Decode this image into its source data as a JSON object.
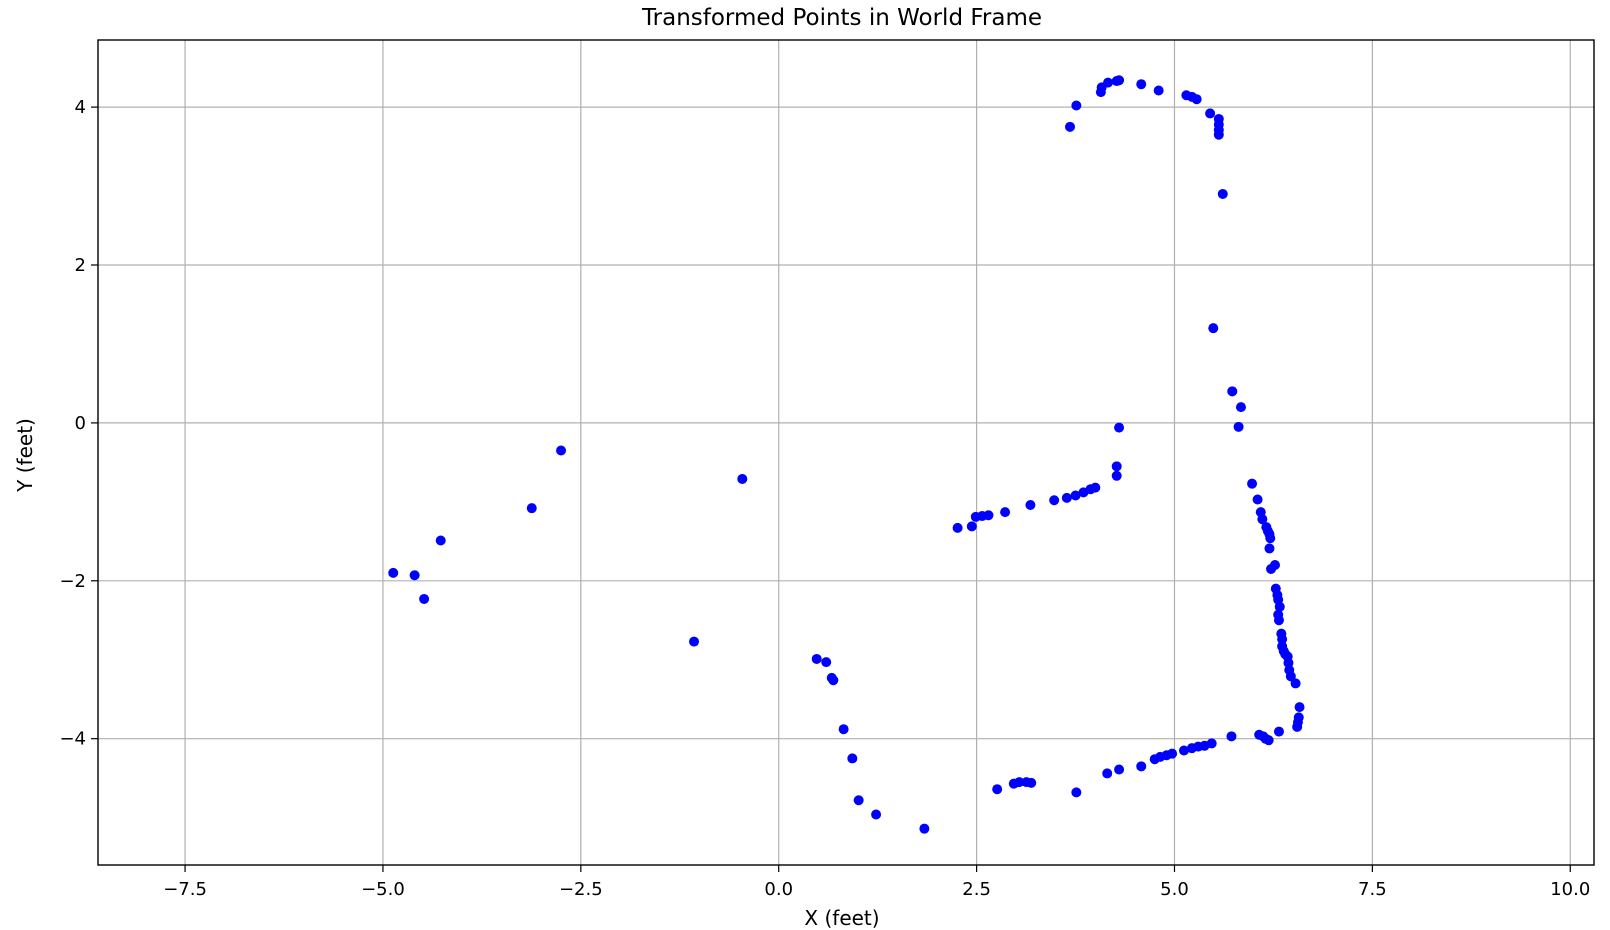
{
  "chart_data": {
    "type": "scatter",
    "title": "Transformed Points in World Frame",
    "xlabel": "X (feet)",
    "ylabel": "Y (feet)",
    "xlim": [
      -8.6,
      10.3
    ],
    "ylim": [
      -5.6,
      4.85
    ],
    "xticks": [
      -7.5,
      -5.0,
      -2.5,
      0.0,
      2.5,
      5.0,
      7.5,
      10.0
    ],
    "xtick_labels": [
      "−7.5",
      "−5.0",
      "−2.5",
      "0.0",
      "2.5",
      "5.0",
      "7.5",
      "10.0"
    ],
    "yticks": [
      -4,
      -2,
      0,
      2,
      4
    ],
    "ytick_labels": [
      "−4",
      "−2",
      "0",
      "2",
      "4"
    ],
    "grid": true,
    "marker_color": "#0000ff",
    "points": [
      [
        -4.87,
        -1.9
      ],
      [
        -4.6,
        -1.93
      ],
      [
        -4.48,
        -2.23
      ],
      [
        -4.27,
        -1.49
      ],
      [
        -3.12,
        -1.08
      ],
      [
        -2.75,
        -0.35
      ],
      [
        -1.07,
        -2.77
      ],
      [
        -0.46,
        -0.71
      ],
      [
        0.48,
        -2.99
      ],
      [
        0.6,
        -3.03
      ],
      [
        0.67,
        -3.23
      ],
      [
        0.69,
        -3.26
      ],
      [
        0.82,
        -3.88
      ],
      [
        0.93,
        -4.25
      ],
      [
        1.01,
        -4.78
      ],
      [
        1.23,
        -4.96
      ],
      [
        1.84,
        -5.14
      ],
      [
        2.26,
        -1.33
      ],
      [
        2.44,
        -1.31
      ],
      [
        2.49,
        -1.19
      ],
      [
        2.57,
        -1.18
      ],
      [
        2.65,
        -1.17
      ],
      [
        2.86,
        -1.13
      ],
      [
        3.18,
        -1.04
      ],
      [
        3.48,
        -0.98
      ],
      [
        3.64,
        -0.95
      ],
      [
        3.75,
        -0.92
      ],
      [
        3.85,
        -0.88
      ],
      [
        3.94,
        -0.84
      ],
      [
        4.0,
        -0.82
      ],
      [
        4.27,
        -0.55
      ],
      [
        4.27,
        -0.67
      ],
      [
        4.3,
        -0.06
      ],
      [
        2.76,
        -4.64
      ],
      [
        2.97,
        -4.57
      ],
      [
        3.04,
        -4.55
      ],
      [
        3.13,
        -4.55
      ],
      [
        3.19,
        -4.56
      ],
      [
        3.76,
        -4.68
      ],
      [
        4.15,
        -4.44
      ],
      [
        4.3,
        -4.39
      ],
      [
        4.58,
        -4.35
      ],
      [
        4.75,
        -4.26
      ],
      [
        4.82,
        -4.23
      ],
      [
        4.9,
        -4.21
      ],
      [
        4.97,
        -4.19
      ],
      [
        5.12,
        -4.15
      ],
      [
        5.22,
        -4.12
      ],
      [
        5.3,
        -4.1
      ],
      [
        5.38,
        -4.09
      ],
      [
        5.47,
        -4.06
      ],
      [
        5.72,
        -3.97
      ],
      [
        6.07,
        -3.95
      ],
      [
        6.12,
        -3.97
      ],
      [
        6.15,
        -4.0
      ],
      [
        6.19,
        -4.02
      ],
      [
        6.32,
        -3.91
      ],
      [
        6.55,
        -3.85
      ],
      [
        6.56,
        -3.79
      ],
      [
        6.57,
        -3.73
      ],
      [
        6.58,
        -3.6
      ],
      [
        6.53,
        -3.3
      ],
      [
        6.47,
        -3.21
      ],
      [
        6.45,
        -3.13
      ],
      [
        6.44,
        -3.04
      ],
      [
        6.43,
        -2.96
      ],
      [
        6.4,
        -2.93
      ],
      [
        6.38,
        -2.89
      ],
      [
        6.36,
        -2.83
      ],
      [
        6.36,
        -2.74
      ],
      [
        6.35,
        -2.67
      ],
      [
        6.32,
        -2.5
      ],
      [
        6.31,
        -2.43
      ],
      [
        6.33,
        -2.33
      ],
      [
        6.31,
        -2.24
      ],
      [
        6.3,
        -2.18
      ],
      [
        6.28,
        -2.1
      ],
      [
        6.27,
        -1.8
      ],
      [
        6.22,
        -1.85
      ],
      [
        6.2,
        -1.59
      ],
      [
        6.21,
        -1.46
      ],
      [
        6.2,
        -1.41
      ],
      [
        6.18,
        -1.37
      ],
      [
        6.16,
        -1.32
      ],
      [
        6.11,
        -1.22
      ],
      [
        6.09,
        -1.13
      ],
      [
        6.05,
        -0.97
      ],
      [
        5.98,
        -0.77
      ],
      [
        5.81,
        -0.05
      ],
      [
        5.84,
        0.2
      ],
      [
        5.73,
        0.4
      ],
      [
        5.49,
        1.2
      ],
      [
        5.61,
        2.9
      ],
      [
        5.56,
        3.65
      ],
      [
        5.56,
        3.71
      ],
      [
        5.56,
        3.78
      ],
      [
        5.56,
        3.85
      ],
      [
        5.45,
        3.92
      ],
      [
        5.28,
        4.1
      ],
      [
        5.22,
        4.13
      ],
      [
        5.15,
        4.15
      ],
      [
        4.8,
        4.21
      ],
      [
        4.58,
        4.29
      ],
      [
        4.3,
        4.34
      ],
      [
        4.27,
        4.33
      ],
      [
        4.16,
        4.31
      ],
      [
        4.08,
        4.25
      ],
      [
        4.07,
        4.19
      ],
      [
        3.76,
        4.02
      ],
      [
        3.68,
        3.75
      ]
    ]
  }
}
